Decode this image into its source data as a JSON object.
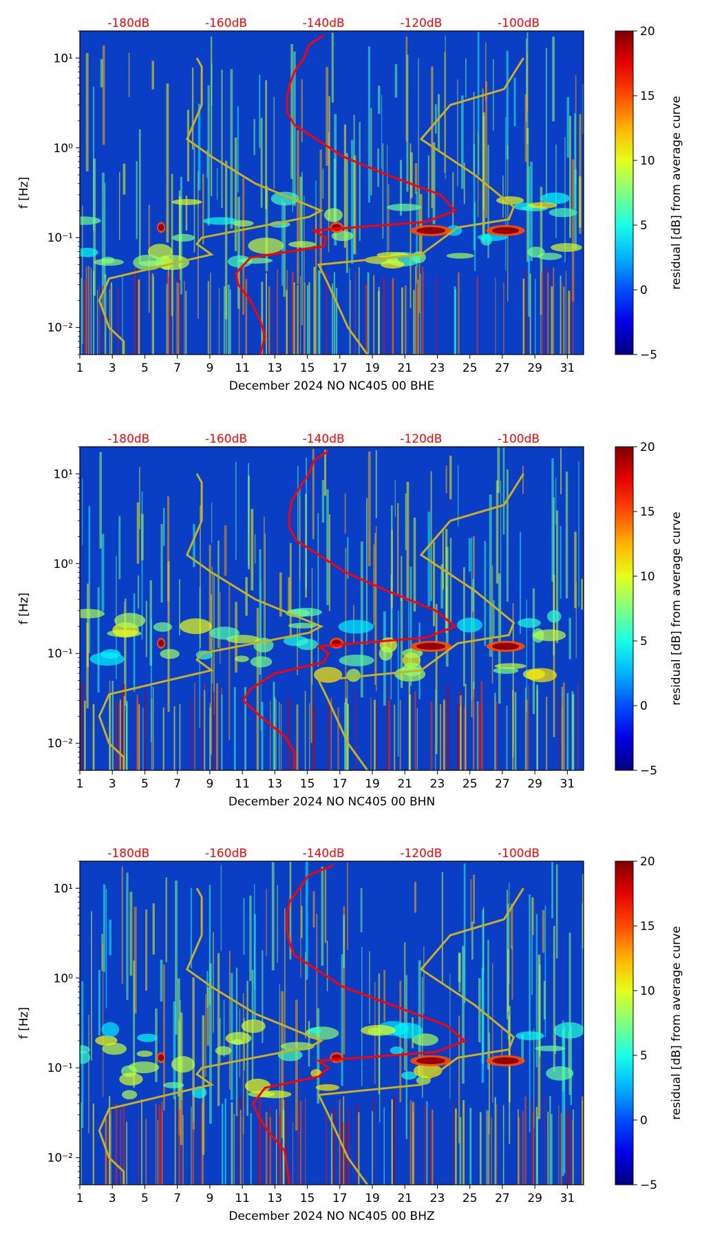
{
  "chart_data": [
    {
      "type": "heatmap",
      "title": "",
      "xlabel": "December 2024 NO NC405 00 BHE",
      "ylabel": "f [Hz]",
      "x_range": [
        1,
        32
      ],
      "x_ticks": [
        "1",
        "3",
        "5",
        "7",
        "9",
        "11",
        "13",
        "15",
        "17",
        "19",
        "21",
        "23",
        "25",
        "27",
        "29",
        "31"
      ],
      "y_range": [
        0.005,
        20
      ],
      "y_scale": "log",
      "y_tick_values": [
        0.01,
        0.1,
        1,
        10
      ],
      "y_tick_labels": [
        "10⁻²",
        "10⁻¹",
        "10⁰",
        "10¹"
      ],
      "top_axis_labels": [
        "-180dB",
        "-160dB",
        "-140dB",
        "-120dB",
        "-100dB"
      ],
      "top_axis_db_positions": [
        -180,
        -160,
        -140,
        -120,
        -100
      ],
      "colorbar": {
        "label": "residual [dB] from average curve",
        "range": [
          -5,
          20
        ],
        "ticks": [
          "−5",
          "0",
          "5",
          "10",
          "15",
          "20"
        ]
      },
      "psd_median_curve_db": {
        "freqs": [
          18,
          14,
          10,
          7,
          5,
          3.5,
          2.5,
          1.8,
          1.2,
          0.8,
          0.5,
          0.3,
          0.2,
          0.15,
          0.12,
          0.1,
          0.08,
          0.06,
          0.04,
          0.03,
          0.02,
          0.012,
          0.008,
          0.005
        ],
        "db": [
          -140,
          -143,
          -144,
          -146,
          -147,
          -147.5,
          -147.5,
          -146,
          -141,
          -136,
          -127,
          -116,
          -113,
          -119,
          -142,
          -139.5,
          -140,
          -155,
          -158,
          -157.5,
          -155,
          -153,
          -152,
          -153
        ]
      },
      "noise_model_curves": {
        "low": {
          "freqs": [
            10,
            8,
            3,
            1.25,
            0.8,
            0.4,
            0.2,
            0.17,
            0.1,
            0.085,
            0.065,
            0.05,
            0.035,
            0.02,
            0.01,
            0.007,
            0.005
          ],
          "db": [
            -166,
            -165,
            -165,
            -168,
            -163,
            -154,
            -140.5,
            -143,
            -165,
            -166,
            -163,
            -172,
            -184,
            -186,
            -184,
            -181,
            -181
          ]
        },
        "high": {
          "freqs": [
            10,
            4.5,
            3,
            1.25,
            0.5,
            0.22,
            0.16,
            0.13,
            0.065,
            0.05,
            0.03,
            0.01,
            0.005
          ],
          "db": [
            -99,
            -103,
            -114,
            -120,
            -109,
            -101,
            -102,
            -112.5,
            -120,
            -141,
            -139,
            -135,
            -131
          ]
        }
      }
    },
    {
      "type": "heatmap",
      "title": "",
      "xlabel": "December 2024 NO NC405 00 BHN",
      "ylabel": "f [Hz]",
      "x_range": [
        1,
        32
      ],
      "x_ticks": [
        "1",
        "3",
        "5",
        "7",
        "9",
        "11",
        "13",
        "15",
        "17",
        "19",
        "21",
        "23",
        "25",
        "27",
        "29",
        "31"
      ],
      "y_range": [
        0.005,
        20
      ],
      "y_scale": "log",
      "y_tick_values": [
        0.01,
        0.1,
        1,
        10
      ],
      "y_tick_labels": [
        "10⁻²",
        "10⁻¹",
        "10⁰",
        "10¹"
      ],
      "top_axis_labels": [
        "-180dB",
        "-160dB",
        "-140dB",
        "-120dB",
        "-100dB"
      ],
      "top_axis_db_positions": [
        -180,
        -160,
        -140,
        -120,
        -100
      ],
      "colorbar": {
        "label": "residual [dB] from average curve",
        "range": [
          -5,
          20
        ],
        "ticks": [
          "−5",
          "0",
          "5",
          "10",
          "15",
          "20"
        ]
      },
      "psd_median_curve_db": {
        "freqs": [
          18,
          14,
          10,
          7,
          5,
          3.5,
          2.5,
          1.8,
          1.2,
          0.8,
          0.5,
          0.3,
          0.2,
          0.15,
          0.12,
          0.1,
          0.08,
          0.06,
          0.04,
          0.03,
          0.02,
          0.012,
          0.008,
          0.005
        ],
        "db": [
          -139,
          -142,
          -143,
          -145,
          -146.5,
          -147,
          -147,
          -145.5,
          -140.5,
          -135.5,
          -127,
          -117,
          -113,
          -119,
          -141,
          -139,
          -140,
          -150,
          -155,
          -156.5,
          -153,
          -148,
          -146,
          -146
        ]
      },
      "noise_model_curves": {
        "low": {
          "freqs": [
            10,
            8,
            3,
            1.25,
            0.8,
            0.4,
            0.2,
            0.17,
            0.1,
            0.085,
            0.065,
            0.05,
            0.035,
            0.02,
            0.01,
            0.007,
            0.005
          ],
          "db": [
            -166,
            -165,
            -165,
            -168,
            -163,
            -154,
            -140.5,
            -143,
            -165,
            -166,
            -163,
            -172,
            -184,
            -186,
            -184,
            -181,
            -181
          ]
        },
        "high": {
          "freqs": [
            10,
            4.5,
            3,
            1.25,
            0.5,
            0.22,
            0.16,
            0.13,
            0.065,
            0.05,
            0.03,
            0.01,
            0.005
          ],
          "db": [
            -99,
            -103,
            -114,
            -120,
            -109,
            -101,
            -102,
            -112.5,
            -120,
            -141,
            -139,
            -135,
            -131
          ]
        }
      }
    },
    {
      "type": "heatmap",
      "title": "",
      "xlabel": "December 2024 NO NC405 00 BHZ",
      "ylabel": "f [Hz]",
      "x_range": [
        1,
        32
      ],
      "x_ticks": [
        "1",
        "3",
        "5",
        "7",
        "9",
        "11",
        "13",
        "15",
        "17",
        "19",
        "21",
        "23",
        "25",
        "27",
        "29",
        "31"
      ],
      "y_range": [
        0.005,
        20
      ],
      "y_scale": "log",
      "y_tick_values": [
        0.01,
        0.1,
        1,
        10
      ],
      "y_tick_labels": [
        "10⁻²",
        "10⁻¹",
        "10⁰",
        "10¹"
      ],
      "top_axis_labels": [
        "-180dB",
        "-160dB",
        "-140dB",
        "-120dB",
        "-100dB"
      ],
      "top_axis_db_positions": [
        -180,
        -160,
        -140,
        -120,
        -100
      ],
      "colorbar": {
        "label": "residual [dB] from average curve",
        "range": [
          -5,
          20
        ],
        "ticks": [
          "−5",
          "0",
          "5",
          "10",
          "15",
          "20"
        ]
      },
      "psd_median_curve_db": {
        "freqs": [
          18,
          14,
          10,
          7,
          5,
          3.5,
          2.5,
          1.8,
          1.2,
          0.8,
          0.5,
          0.3,
          0.2,
          0.15,
          0.12,
          0.1,
          0.08,
          0.06,
          0.04,
          0.03,
          0.02,
          0.012,
          0.008,
          0.005
        ],
        "db": [
          -138,
          -143,
          -145,
          -147,
          -147.5,
          -147.5,
          -147,
          -146,
          -141,
          -136,
          -126,
          -115,
          -111,
          -117,
          -141,
          -139,
          -141,
          -152,
          -154.5,
          -153.5,
          -151.5,
          -148,
          -147.5,
          -147
        ]
      },
      "noise_model_curves": {
        "low": {
          "freqs": [
            10,
            8,
            3,
            1.25,
            0.8,
            0.4,
            0.2,
            0.17,
            0.1,
            0.085,
            0.065,
            0.05,
            0.035,
            0.02,
            0.01,
            0.007,
            0.005
          ],
          "db": [
            -166,
            -165,
            -165,
            -168,
            -163,
            -154,
            -140.5,
            -143,
            -165,
            -166,
            -163,
            -172,
            -184,
            -186,
            -184,
            -181,
            -181
          ]
        },
        "high": {
          "freqs": [
            10,
            4.5,
            3,
            1.25,
            0.5,
            0.22,
            0.16,
            0.13,
            0.065,
            0.05,
            0.03,
            0.01,
            0.005
          ],
          "db": [
            -99,
            -103,
            -114,
            -120,
            -109,
            -101,
            -102,
            -112.5,
            -120,
            -141,
            -139,
            -135,
            -131
          ]
        }
      }
    }
  ],
  "styles": {
    "curve_color": "#ff0000",
    "model_color": "#c8b025",
    "top_label_color": "#ff0000",
    "background_color": "#0a3ec4"
  }
}
